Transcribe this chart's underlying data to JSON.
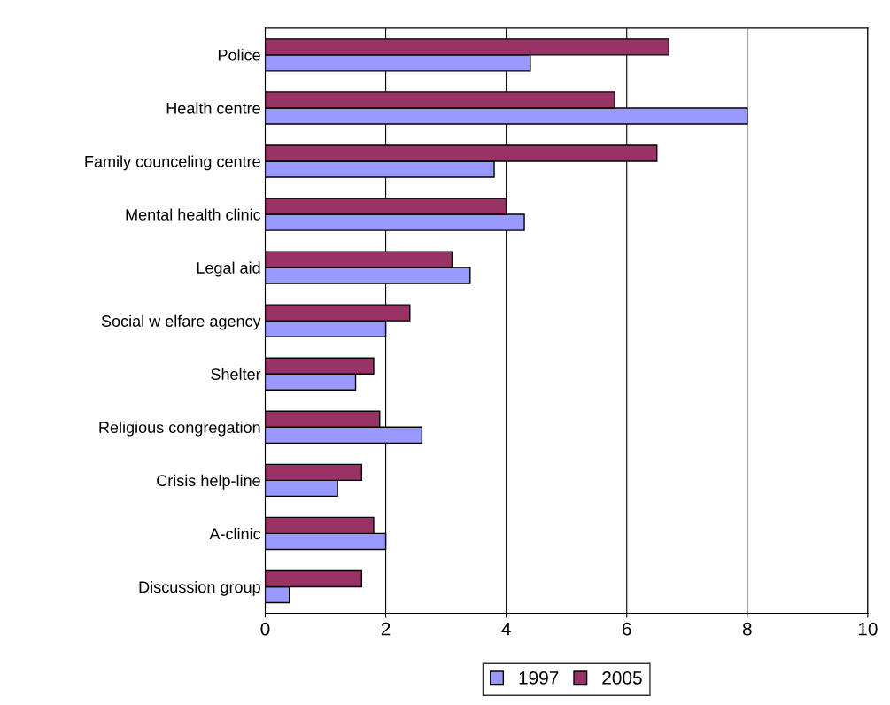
{
  "chart_data": {
    "type": "bar",
    "orientation": "horizontal",
    "categories": [
      "Police",
      "Health centre",
      "Family counceling centre",
      "Mental health clinic",
      "Legal aid",
      "Social w elfare agency",
      "Shelter",
      "Religious congregation",
      "Crisis help-line",
      "A-clinic",
      "Discussion group"
    ],
    "series": [
      {
        "name": "1997",
        "color": "#9999ff",
        "values": [
          4.4,
          8.0,
          3.8,
          4.3,
          3.4,
          2.0,
          1.5,
          2.6,
          1.2,
          2.0,
          0.4
        ]
      },
      {
        "name": "2005",
        "color": "#993366",
        "values": [
          6.7,
          5.8,
          6.5,
          4.0,
          3.1,
          2.4,
          1.8,
          1.9,
          1.6,
          1.8,
          1.6
        ]
      }
    ],
    "xlim": [
      0,
      10
    ],
    "xticks": [
      0,
      2,
      4,
      6,
      8,
      10
    ],
    "grid": "x",
    "legend": "bottom"
  }
}
